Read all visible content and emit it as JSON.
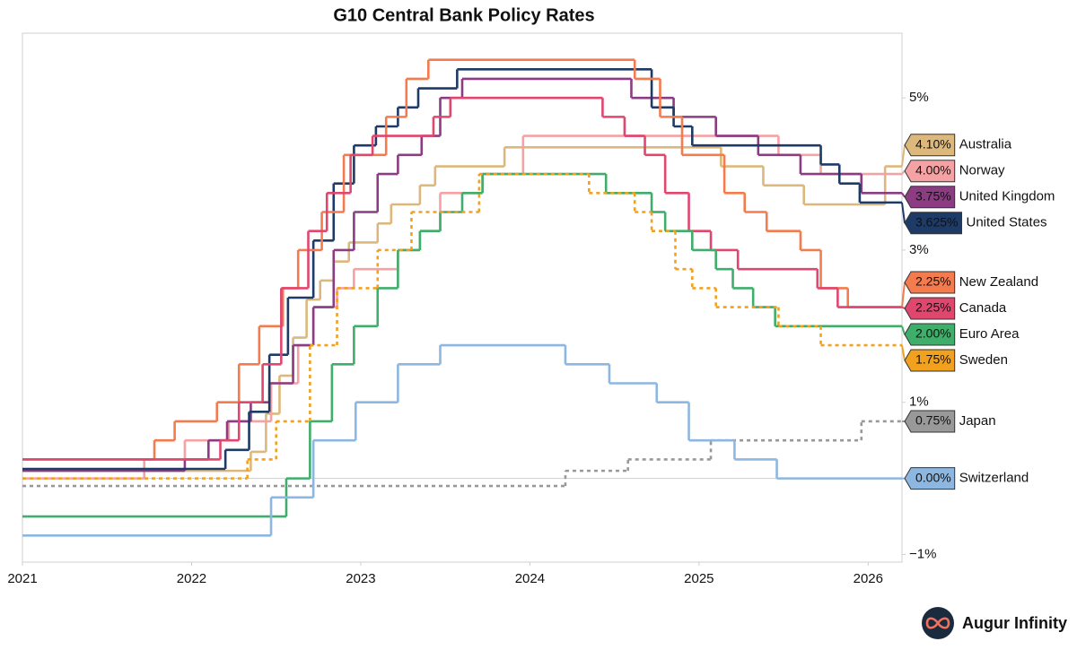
{
  "chart_data": {
    "type": "step",
    "title": "G10 Central Bank Policy Rates",
    "brand": "Augur Infinity",
    "xlim": [
      2021,
      2026.2
    ],
    "xticks": [
      2021,
      2022,
      2023,
      2024,
      2025,
      2026
    ],
    "ylim": [
      -1.1,
      5.85
    ],
    "yticks": [
      {
        "value": -1,
        "label": "−1%"
      },
      {
        "value": 1,
        "label": "1%"
      },
      {
        "value": 3,
        "label": "3%"
      },
      {
        "value": 5,
        "label": "5%"
      }
    ],
    "zero_line": true,
    "series": [
      {
        "name": "Australia",
        "color": "#ddb87c",
        "dashed": false,
        "x": [
          2021,
          2022.35,
          2022.44,
          2022.52,
          2022.6,
          2022.68,
          2022.76,
          2022.84,
          2022.93,
          2023.1,
          2023.18,
          2023.35,
          2023.44,
          2023.85,
          2025.13,
          2025.38,
          2025.62,
          2026.1
        ],
        "values": [
          0.1,
          0.35,
          0.85,
          1.35,
          1.85,
          2.35,
          2.6,
          2.85,
          3.1,
          3.35,
          3.6,
          3.85,
          4.1,
          4.35,
          4.1,
          3.85,
          3.6,
          4.1
        ],
        "value_labels": [
          null,
          null,
          null,
          null,
          null,
          null,
          null,
          null,
          null,
          null,
          null,
          null,
          null,
          null,
          null,
          null,
          null,
          "4.10%"
        ]
      },
      {
        "name": "Norway",
        "color": "#f4a2a4",
        "dashed": false,
        "x": [
          2021,
          2021.72,
          2021.96,
          2022.22,
          2022.47,
          2022.63,
          2022.72,
          2022.86,
          2022.96,
          2023.22,
          2023.35,
          2023.47,
          2023.72,
          2023.96,
          2025.47,
          2025.72
        ],
        "values": [
          0,
          0.25,
          0.5,
          0.75,
          1.25,
          1.75,
          2.25,
          2.5,
          2.75,
          3.0,
          3.25,
          3.75,
          4.0,
          4.5,
          4.25,
          4.0
        ],
        "value_labels": [
          null,
          null,
          null,
          null,
          null,
          null,
          null,
          null,
          null,
          null,
          null,
          null,
          null,
          null,
          null,
          "4.00%"
        ]
      },
      {
        "name": "United Kingdom",
        "color": "#8b3c82",
        "dashed": false,
        "x": [
          2021,
          2021.96,
          2022.1,
          2022.21,
          2022.35,
          2022.46,
          2022.6,
          2022.72,
          2022.84,
          2022.96,
          2023.1,
          2023.22,
          2023.36,
          2023.47,
          2023.6,
          2024.6,
          2024.85,
          2025.1,
          2025.35,
          2025.6,
          2025.96
        ],
        "values": [
          0.1,
          0.25,
          0.5,
          0.75,
          1.0,
          1.25,
          1.75,
          2.25,
          3.0,
          3.5,
          4.0,
          4.25,
          4.5,
          5.0,
          5.25,
          5.0,
          4.75,
          4.5,
          4.25,
          4.0,
          3.75
        ],
        "value_labels": [
          null,
          null,
          null,
          null,
          null,
          null,
          null,
          null,
          null,
          null,
          null,
          null,
          null,
          null,
          null,
          null,
          null,
          null,
          null,
          null,
          "3.75%"
        ]
      },
      {
        "name": "United States",
        "color": "#1e3a66",
        "dashed": false,
        "x": [
          2021,
          2022.2,
          2022.34,
          2022.46,
          2022.57,
          2022.72,
          2022.84,
          2022.96,
          2023.09,
          2023.22,
          2023.34,
          2023.57,
          2024.72,
          2024.85,
          2024.96,
          2025.72,
          2025.83,
          2025.95
        ],
        "values": [
          0.125,
          0.375,
          0.875,
          1.625,
          2.375,
          3.125,
          3.875,
          4.375,
          4.625,
          4.875,
          5.125,
          5.375,
          4.875,
          4.625,
          4.375,
          4.125,
          3.875,
          3.625
        ],
        "value_labels": [
          null,
          null,
          null,
          null,
          null,
          null,
          null,
          null,
          null,
          null,
          null,
          null,
          null,
          null,
          null,
          null,
          null,
          "3.625%"
        ]
      },
      {
        "name": "New Zealand",
        "color": "#f47b4e",
        "dashed": false,
        "x": [
          2021,
          2021.78,
          2021.9,
          2022.15,
          2022.28,
          2022.4,
          2022.54,
          2022.63,
          2022.77,
          2022.9,
          2023.15,
          2023.27,
          2023.4,
          2024.62,
          2024.77,
          2024.9,
          2025.15,
          2025.27,
          2025.4,
          2025.6,
          2025.72,
          2025.88
        ],
        "values": [
          0.25,
          0.5,
          0.75,
          1.0,
          1.5,
          2.0,
          2.5,
          3.0,
          3.5,
          4.25,
          4.75,
          5.25,
          5.5,
          5.25,
          4.75,
          4.25,
          3.75,
          3.5,
          3.25,
          3.0,
          2.5,
          2.25
        ],
        "value_labels": [
          null,
          null,
          null,
          null,
          null,
          null,
          null,
          null,
          null,
          null,
          null,
          null,
          null,
          null,
          null,
          null,
          null,
          null,
          null,
          null,
          null,
          "2.25%"
        ]
      },
      {
        "name": "Canada",
        "color": "#e0476f",
        "dashed": false,
        "x": [
          2021,
          2022.17,
          2022.28,
          2022.42,
          2022.53,
          2022.69,
          2022.8,
          2022.94,
          2023.07,
          2023.43,
          2023.53,
          2024.43,
          2024.56,
          2024.68,
          2024.8,
          2024.94,
          2025.07,
          2025.23,
          2025.7,
          2025.82
        ],
        "values": [
          0.25,
          0.5,
          1.0,
          1.5,
          2.5,
          3.25,
          3.75,
          4.25,
          4.5,
          4.75,
          5.0,
          4.75,
          4.5,
          4.25,
          3.75,
          3.25,
          3.0,
          2.75,
          2.5,
          2.25
        ],
        "value_labels": [
          null,
          null,
          null,
          null,
          null,
          null,
          null,
          null,
          null,
          null,
          null,
          null,
          null,
          null,
          null,
          null,
          null,
          null,
          null,
          "2.25%"
        ]
      },
      {
        "name": "Euro Area",
        "color": "#3fae6a",
        "dashed": false,
        "x": [
          2021,
          2022.56,
          2022.7,
          2022.83,
          2022.96,
          2023.1,
          2023.22,
          2023.35,
          2023.47,
          2023.6,
          2023.72,
          2024.45,
          2024.72,
          2024.8,
          2024.96,
          2025.1,
          2025.2,
          2025.32,
          2025.45
        ],
        "values": [
          -0.5,
          0,
          0.75,
          1.5,
          2.0,
          2.5,
          3.0,
          3.25,
          3.5,
          3.75,
          4.0,
          3.75,
          3.5,
          3.25,
          3.0,
          2.75,
          2.5,
          2.25,
          2.0
        ],
        "value_labels": [
          null,
          null,
          null,
          null,
          null,
          null,
          null,
          null,
          null,
          null,
          null,
          null,
          null,
          null,
          null,
          null,
          null,
          null,
          "2.00%"
        ]
      },
      {
        "name": "Sweden",
        "color": "#f2a11e",
        "dashed": true,
        "x": [
          2021,
          2022.33,
          2022.5,
          2022.7,
          2022.86,
          2023.1,
          2023.3,
          2023.7,
          2024.35,
          2024.62,
          2024.72,
          2024.86,
          2024.96,
          2025.1,
          2025.47,
          2025.72
        ],
        "values": [
          0,
          0.25,
          0.75,
          1.75,
          2.5,
          3.0,
          3.5,
          4.0,
          3.75,
          3.5,
          3.25,
          2.75,
          2.5,
          2.25,
          2.0,
          1.75
        ],
        "value_labels": [
          null,
          null,
          null,
          null,
          null,
          null,
          null,
          null,
          null,
          null,
          null,
          null,
          null,
          null,
          null,
          "1.75%"
        ]
      },
      {
        "name": "Japan",
        "color": "#999999",
        "dashed": true,
        "x": [
          2021,
          2024.21,
          2024.58,
          2025.07,
          2025.96
        ],
        "values": [
          -0.1,
          0.1,
          0.25,
          0.5,
          0.75
        ],
        "value_labels": [
          null,
          null,
          null,
          null,
          "0.75%"
        ]
      },
      {
        "name": "Switzerland",
        "color": "#8db7e0",
        "dashed": false,
        "x": [
          2021,
          2022.47,
          2022.72,
          2022.97,
          2023.22,
          2023.47,
          2024.21,
          2024.47,
          2024.75,
          2024.94,
          2025.21,
          2025.46
        ],
        "values": [
          -0.75,
          -0.25,
          0.5,
          1.0,
          1.5,
          1.75,
          1.5,
          1.25,
          1.0,
          0.5,
          0.25,
          0
        ],
        "value_labels": [
          null,
          null,
          null,
          null,
          null,
          null,
          null,
          null,
          null,
          null,
          null,
          "0.00%"
        ]
      }
    ]
  }
}
